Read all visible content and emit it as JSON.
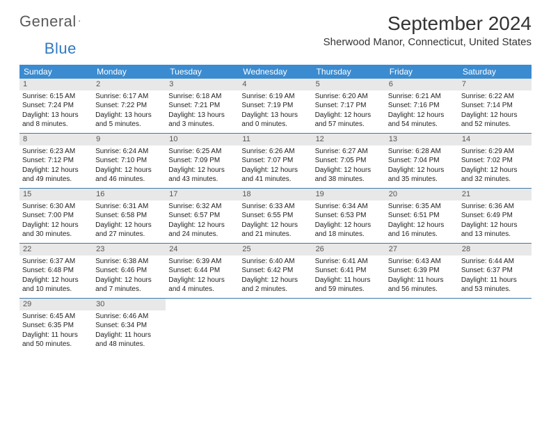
{
  "logo": {
    "text1": "General",
    "text2": "Blue"
  },
  "title": "September 2024",
  "location": "Sherwood Manor, Connecticut, United States",
  "colors": {
    "header_bg": "#3b8bd0",
    "header_text": "#ffffff",
    "day_band_bg": "#e8e8e8",
    "row_border": "#3c78aa",
    "logo_blue": "#2f78c2",
    "logo_gray": "#5a5a5a",
    "text": "#222222"
  },
  "weekdays": [
    "Sunday",
    "Monday",
    "Tuesday",
    "Wednesday",
    "Thursday",
    "Friday",
    "Saturday"
  ],
  "weeks": [
    [
      {
        "n": "1",
        "sr": "Sunrise: 6:15 AM",
        "ss": "Sunset: 7:24 PM",
        "dl": "Daylight: 13 hours and 8 minutes."
      },
      {
        "n": "2",
        "sr": "Sunrise: 6:17 AM",
        "ss": "Sunset: 7:22 PM",
        "dl": "Daylight: 13 hours and 5 minutes."
      },
      {
        "n": "3",
        "sr": "Sunrise: 6:18 AM",
        "ss": "Sunset: 7:21 PM",
        "dl": "Daylight: 13 hours and 3 minutes."
      },
      {
        "n": "4",
        "sr": "Sunrise: 6:19 AM",
        "ss": "Sunset: 7:19 PM",
        "dl": "Daylight: 13 hours and 0 minutes."
      },
      {
        "n": "5",
        "sr": "Sunrise: 6:20 AM",
        "ss": "Sunset: 7:17 PM",
        "dl": "Daylight: 12 hours and 57 minutes."
      },
      {
        "n": "6",
        "sr": "Sunrise: 6:21 AM",
        "ss": "Sunset: 7:16 PM",
        "dl": "Daylight: 12 hours and 54 minutes."
      },
      {
        "n": "7",
        "sr": "Sunrise: 6:22 AM",
        "ss": "Sunset: 7:14 PM",
        "dl": "Daylight: 12 hours and 52 minutes."
      }
    ],
    [
      {
        "n": "8",
        "sr": "Sunrise: 6:23 AM",
        "ss": "Sunset: 7:12 PM",
        "dl": "Daylight: 12 hours and 49 minutes."
      },
      {
        "n": "9",
        "sr": "Sunrise: 6:24 AM",
        "ss": "Sunset: 7:10 PM",
        "dl": "Daylight: 12 hours and 46 minutes."
      },
      {
        "n": "10",
        "sr": "Sunrise: 6:25 AM",
        "ss": "Sunset: 7:09 PM",
        "dl": "Daylight: 12 hours and 43 minutes."
      },
      {
        "n": "11",
        "sr": "Sunrise: 6:26 AM",
        "ss": "Sunset: 7:07 PM",
        "dl": "Daylight: 12 hours and 41 minutes."
      },
      {
        "n": "12",
        "sr": "Sunrise: 6:27 AM",
        "ss": "Sunset: 7:05 PM",
        "dl": "Daylight: 12 hours and 38 minutes."
      },
      {
        "n": "13",
        "sr": "Sunrise: 6:28 AM",
        "ss": "Sunset: 7:04 PM",
        "dl": "Daylight: 12 hours and 35 minutes."
      },
      {
        "n": "14",
        "sr": "Sunrise: 6:29 AM",
        "ss": "Sunset: 7:02 PM",
        "dl": "Daylight: 12 hours and 32 minutes."
      }
    ],
    [
      {
        "n": "15",
        "sr": "Sunrise: 6:30 AM",
        "ss": "Sunset: 7:00 PM",
        "dl": "Daylight: 12 hours and 30 minutes."
      },
      {
        "n": "16",
        "sr": "Sunrise: 6:31 AM",
        "ss": "Sunset: 6:58 PM",
        "dl": "Daylight: 12 hours and 27 minutes."
      },
      {
        "n": "17",
        "sr": "Sunrise: 6:32 AM",
        "ss": "Sunset: 6:57 PM",
        "dl": "Daylight: 12 hours and 24 minutes."
      },
      {
        "n": "18",
        "sr": "Sunrise: 6:33 AM",
        "ss": "Sunset: 6:55 PM",
        "dl": "Daylight: 12 hours and 21 minutes."
      },
      {
        "n": "19",
        "sr": "Sunrise: 6:34 AM",
        "ss": "Sunset: 6:53 PM",
        "dl": "Daylight: 12 hours and 18 minutes."
      },
      {
        "n": "20",
        "sr": "Sunrise: 6:35 AM",
        "ss": "Sunset: 6:51 PM",
        "dl": "Daylight: 12 hours and 16 minutes."
      },
      {
        "n": "21",
        "sr": "Sunrise: 6:36 AM",
        "ss": "Sunset: 6:49 PM",
        "dl": "Daylight: 12 hours and 13 minutes."
      }
    ],
    [
      {
        "n": "22",
        "sr": "Sunrise: 6:37 AM",
        "ss": "Sunset: 6:48 PM",
        "dl": "Daylight: 12 hours and 10 minutes."
      },
      {
        "n": "23",
        "sr": "Sunrise: 6:38 AM",
        "ss": "Sunset: 6:46 PM",
        "dl": "Daylight: 12 hours and 7 minutes."
      },
      {
        "n": "24",
        "sr": "Sunrise: 6:39 AM",
        "ss": "Sunset: 6:44 PM",
        "dl": "Daylight: 12 hours and 4 minutes."
      },
      {
        "n": "25",
        "sr": "Sunrise: 6:40 AM",
        "ss": "Sunset: 6:42 PM",
        "dl": "Daylight: 12 hours and 2 minutes."
      },
      {
        "n": "26",
        "sr": "Sunrise: 6:41 AM",
        "ss": "Sunset: 6:41 PM",
        "dl": "Daylight: 11 hours and 59 minutes."
      },
      {
        "n": "27",
        "sr": "Sunrise: 6:43 AM",
        "ss": "Sunset: 6:39 PM",
        "dl": "Daylight: 11 hours and 56 minutes."
      },
      {
        "n": "28",
        "sr": "Sunrise: 6:44 AM",
        "ss": "Sunset: 6:37 PM",
        "dl": "Daylight: 11 hours and 53 minutes."
      }
    ],
    [
      {
        "n": "29",
        "sr": "Sunrise: 6:45 AM",
        "ss": "Sunset: 6:35 PM",
        "dl": "Daylight: 11 hours and 50 minutes."
      },
      {
        "n": "30",
        "sr": "Sunrise: 6:46 AM",
        "ss": "Sunset: 6:34 PM",
        "dl": "Daylight: 11 hours and 48 minutes."
      },
      {
        "empty": true
      },
      {
        "empty": true
      },
      {
        "empty": true
      },
      {
        "empty": true
      },
      {
        "empty": true
      }
    ]
  ]
}
